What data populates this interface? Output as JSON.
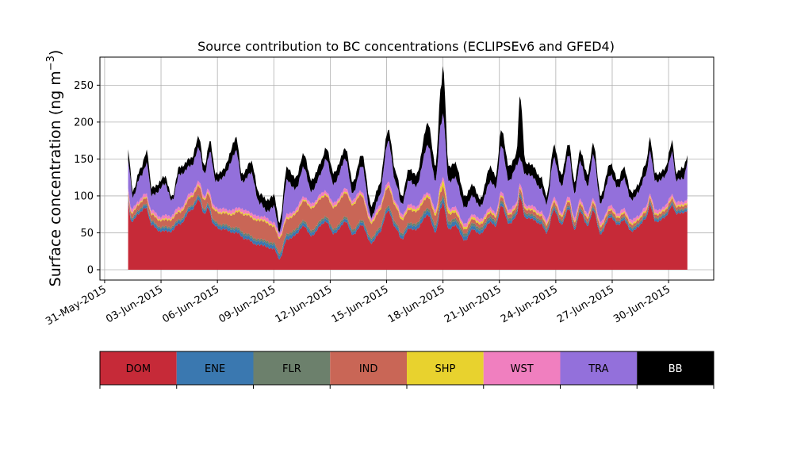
{
  "chart_data": {
    "type": "area",
    "stacked": true,
    "title": "Source contribution to BC concentrations (ECLIPSEv6 and GFED4)",
    "ylabel": "Surface concentration (ng m",
    "ylabel_superscript": "−3",
    "ylabel_close": ")",
    "ylim": [
      -14,
      288
    ],
    "yticks": [
      0,
      50,
      100,
      150,
      200,
      250
    ],
    "xlim": [
      -0.25,
      32.4
    ],
    "x_start_date": "2015-06-01",
    "x_end_date": "2015-07-01T18:00",
    "xticks": [
      {
        "pos": 0,
        "label": "31-May-2015"
      },
      {
        "pos": 3,
        "label": "03-Jun-2015"
      },
      {
        "pos": 6,
        "label": "06-Jun-2015"
      },
      {
        "pos": 9,
        "label": "09-Jun-2015"
      },
      {
        "pos": 12,
        "label": "12-Jun-2015"
      },
      {
        "pos": 15,
        "label": "15-Jun-2015"
      },
      {
        "pos": 18,
        "label": "18-Jun-2015"
      },
      {
        "pos": 21,
        "label": "21-Jun-2015"
      },
      {
        "pos": 24,
        "label": "24-Jun-2015"
      },
      {
        "pos": 27,
        "label": "27-Jun-2015"
      },
      {
        "pos": 30,
        "label": "30-Jun-2015"
      }
    ],
    "grid": true,
    "total_anchors": [
      [
        1.25,
        160
      ],
      [
        1.5,
        108
      ],
      [
        1.9,
        135
      ],
      [
        2.25,
        162
      ],
      [
        2.5,
        110
      ],
      [
        3.2,
        125
      ],
      [
        3.6,
        100
      ],
      [
        4.0,
        140
      ],
      [
        4.6,
        150
      ],
      [
        5.0,
        180
      ],
      [
        5.3,
        140
      ],
      [
        5.6,
        175
      ],
      [
        5.9,
        130
      ],
      [
        6.3,
        135
      ],
      [
        7.0,
        178
      ],
      [
        7.3,
        130
      ],
      [
        7.8,
        145
      ],
      [
        8.25,
        102
      ],
      [
        8.6,
        95
      ],
      [
        9.0,
        100
      ],
      [
        9.3,
        65
      ],
      [
        9.7,
        137
      ],
      [
        10.2,
        125
      ],
      [
        10.6,
        158
      ],
      [
        11.0,
        120
      ],
      [
        11.5,
        145
      ],
      [
        11.8,
        165
      ],
      [
        12.2,
        130
      ],
      [
        12.8,
        164
      ],
      [
        13.2,
        120
      ],
      [
        13.7,
        155
      ],
      [
        14.2,
        85
      ],
      [
        14.6,
        115
      ],
      [
        15.1,
        190
      ],
      [
        15.5,
        130
      ],
      [
        15.8,
        100
      ],
      [
        16.2,
        135
      ],
      [
        16.6,
        130
      ],
      [
        17.2,
        200
      ],
      [
        17.6,
        140
      ],
      [
        17.9,
        250
      ],
      [
        18.0,
        275
      ],
      [
        18.3,
        140
      ],
      [
        18.6,
        145
      ],
      [
        19.2,
        100
      ],
      [
        19.6,
        115
      ],
      [
        20.0,
        95
      ],
      [
        20.5,
        140
      ],
      [
        20.8,
        125
      ],
      [
        21.1,
        191
      ],
      [
        21.5,
        140
      ],
      [
        21.9,
        155
      ],
      [
        22.1,
        235
      ],
      [
        22.4,
        145
      ],
      [
        22.8,
        140
      ],
      [
        23.2,
        125
      ],
      [
        23.5,
        100
      ],
      [
        23.9,
        167
      ],
      [
        24.3,
        130
      ],
      [
        24.7,
        170
      ],
      [
        25.0,
        120
      ],
      [
        25.3,
        160
      ],
      [
        25.7,
        130
      ],
      [
        26.0,
        170
      ],
      [
        26.4,
        100
      ],
      [
        26.9,
        145
      ],
      [
        27.3,
        120
      ],
      [
        27.6,
        140
      ],
      [
        28.0,
        105
      ],
      [
        28.4,
        115
      ],
      [
        28.8,
        145
      ],
      [
        29.0,
        178
      ],
      [
        29.3,
        130
      ],
      [
        29.8,
        135
      ],
      [
        30.2,
        175
      ],
      [
        30.4,
        130
      ],
      [
        30.8,
        140
      ],
      [
        31.0,
        154
      ]
    ],
    "tra_top_anchors": [
      [
        1.25,
        145
      ],
      [
        1.5,
        100
      ],
      [
        1.9,
        125
      ],
      [
        2.25,
        145
      ],
      [
        2.5,
        100
      ],
      [
        3.2,
        115
      ],
      [
        3.6,
        95
      ],
      [
        4.0,
        130
      ],
      [
        4.6,
        140
      ],
      [
        5.0,
        165
      ],
      [
        5.3,
        130
      ],
      [
        5.6,
        160
      ],
      [
        5.9,
        120
      ],
      [
        6.3,
        125
      ],
      [
        7.0,
        160
      ],
      [
        7.3,
        120
      ],
      [
        7.8,
        130
      ],
      [
        8.25,
        90
      ],
      [
        8.6,
        80
      ],
      [
        9.0,
        85
      ],
      [
        9.3,
        52
      ],
      [
        9.7,
        120
      ],
      [
        10.2,
        110
      ],
      [
        10.6,
        140
      ],
      [
        11.0,
        105
      ],
      [
        11.5,
        130
      ],
      [
        11.8,
        150
      ],
      [
        12.2,
        115
      ],
      [
        12.8,
        150
      ],
      [
        13.2,
        105
      ],
      [
        13.7,
        140
      ],
      [
        14.2,
        70
      ],
      [
        14.6,
        100
      ],
      [
        15.1,
        175
      ],
      [
        15.5,
        115
      ],
      [
        15.8,
        90
      ],
      [
        16.2,
        120
      ],
      [
        16.6,
        115
      ],
      [
        17.2,
        170
      ],
      [
        17.6,
        120
      ],
      [
        17.9,
        200
      ],
      [
        18.0,
        210
      ],
      [
        18.3,
        120
      ],
      [
        18.6,
        125
      ],
      [
        19.2,
        85
      ],
      [
        19.6,
        100
      ],
      [
        20.0,
        85
      ],
      [
        20.5,
        120
      ],
      [
        20.8,
        110
      ],
      [
        21.1,
        170
      ],
      [
        21.5,
        120
      ],
      [
        21.9,
        140
      ],
      [
        22.1,
        150
      ],
      [
        22.4,
        130
      ],
      [
        22.8,
        125
      ],
      [
        23.2,
        110
      ],
      [
        23.5,
        90
      ],
      [
        23.9,
        150
      ],
      [
        24.3,
        115
      ],
      [
        24.7,
        155
      ],
      [
        25.0,
        105
      ],
      [
        25.3,
        145
      ],
      [
        25.7,
        115
      ],
      [
        26.0,
        155
      ],
      [
        26.4,
        90
      ],
      [
        26.9,
        130
      ],
      [
        27.3,
        110
      ],
      [
        27.6,
        125
      ],
      [
        28.0,
        95
      ],
      [
        28.4,
        105
      ],
      [
        28.8,
        130
      ],
      [
        29.0,
        160
      ],
      [
        29.3,
        120
      ],
      [
        29.8,
        125
      ],
      [
        30.2,
        160
      ],
      [
        30.4,
        120
      ],
      [
        30.8,
        125
      ],
      [
        31.0,
        145
      ]
    ],
    "dom_anchors": [
      [
        1.25,
        92
      ],
      [
        1.4,
        65
      ],
      [
        1.8,
        75
      ],
      [
        2.2,
        85
      ],
      [
        2.5,
        60
      ],
      [
        3.0,
        52
      ],
      [
        3.5,
        52
      ],
      [
        4.0,
        62
      ],
      [
        4.6,
        80
      ],
      [
        5.0,
        95
      ],
      [
        5.3,
        75
      ],
      [
        5.5,
        85
      ],
      [
        5.8,
        60
      ],
      [
        6.2,
        55
      ],
      [
        7.0,
        50
      ],
      [
        7.5,
        42
      ],
      [
        8.0,
        35
      ],
      [
        8.5,
        32
      ],
      [
        9.0,
        28
      ],
      [
        9.3,
        15
      ],
      [
        9.7,
        40
      ],
      [
        10.2,
        48
      ],
      [
        10.6,
        60
      ],
      [
        11.0,
        45
      ],
      [
        11.5,
        60
      ],
      [
        11.8,
        65
      ],
      [
        12.2,
        48
      ],
      [
        12.8,
        65
      ],
      [
        13.2,
        48
      ],
      [
        13.7,
        60
      ],
      [
        14.2,
        35
      ],
      [
        14.6,
        50
      ],
      [
        15.1,
        80
      ],
      [
        15.5,
        55
      ],
      [
        15.8,
        42
      ],
      [
        16.2,
        55
      ],
      [
        16.6,
        55
      ],
      [
        17.2,
        75
      ],
      [
        17.6,
        50
      ],
      [
        17.9,
        85
      ],
      [
        18.0,
        90
      ],
      [
        18.3,
        55
      ],
      [
        18.6,
        60
      ],
      [
        19.2,
        40
      ],
      [
        19.6,
        55
      ],
      [
        20.0,
        48
      ],
      [
        20.5,
        65
      ],
      [
        20.8,
        58
      ],
      [
        21.1,
        88
      ],
      [
        21.5,
        62
      ],
      [
        21.9,
        72
      ],
      [
        22.1,
        98
      ],
      [
        22.4,
        70
      ],
      [
        22.8,
        68
      ],
      [
        23.2,
        62
      ],
      [
        23.5,
        50
      ],
      [
        23.9,
        80
      ],
      [
        24.3,
        62
      ],
      [
        24.7,
        82
      ],
      [
        25.0,
        55
      ],
      [
        25.3,
        78
      ],
      [
        25.7,
        60
      ],
      [
        26.0,
        80
      ],
      [
        26.4,
        48
      ],
      [
        26.9,
        72
      ],
      [
        27.3,
        60
      ],
      [
        27.6,
        68
      ],
      [
        28.0,
        52
      ],
      [
        28.4,
        58
      ],
      [
        28.8,
        70
      ],
      [
        29.0,
        88
      ],
      [
        29.3,
        65
      ],
      [
        29.8,
        70
      ],
      [
        30.2,
        88
      ],
      [
        30.4,
        75
      ],
      [
        30.8,
        78
      ],
      [
        31.0,
        80
      ]
    ],
    "ene_anchors": [
      [
        1.25,
        3
      ],
      [
        3.0,
        4
      ],
      [
        6.0,
        4
      ],
      [
        9.0,
        5
      ],
      [
        12.0,
        4
      ],
      [
        15.0,
        4
      ],
      [
        18.0,
        6
      ],
      [
        21.0,
        4
      ],
      [
        24.0,
        3
      ],
      [
        27.0,
        3
      ],
      [
        31.0,
        3
      ]
    ],
    "flr_anchors": [
      [
        1.25,
        2
      ],
      [
        4.0,
        2
      ],
      [
        8.0,
        3
      ],
      [
        12.0,
        3
      ],
      [
        16.0,
        3
      ],
      [
        18.0,
        4
      ],
      [
        22.0,
        3
      ],
      [
        26.0,
        2
      ],
      [
        31.0,
        2
      ]
    ],
    "ind_anchors": [
      [
        1.25,
        6
      ],
      [
        2.5,
        8
      ],
      [
        4.0,
        10
      ],
      [
        5.0,
        12
      ],
      [
        6.5,
        15
      ],
      [
        7.5,
        25
      ],
      [
        8.5,
        25
      ],
      [
        9.3,
        20
      ],
      [
        10.0,
        20
      ],
      [
        11.0,
        30
      ],
      [
        12.0,
        28
      ],
      [
        13.0,
        32
      ],
      [
        13.5,
        35
      ],
      [
        14.2,
        20
      ],
      [
        15.0,
        25
      ],
      [
        16.0,
        18
      ],
      [
        17.0,
        15
      ],
      [
        18.0,
        12
      ],
      [
        19.0,
        6
      ],
      [
        20.0,
        5
      ],
      [
        22.0,
        5
      ],
      [
        24.0,
        5
      ],
      [
        26.0,
        5
      ],
      [
        28.0,
        4
      ],
      [
        31.0,
        4
      ]
    ],
    "shp_anchors": [
      [
        1.25,
        1.5
      ],
      [
        6.0,
        2
      ],
      [
        12.0,
        2
      ],
      [
        17.5,
        3
      ],
      [
        18.0,
        8
      ],
      [
        18.5,
        3
      ],
      [
        22.0,
        2
      ],
      [
        31.0,
        2
      ]
    ],
    "series": [
      {
        "name": "DOM",
        "color": "#c62a38"
      },
      {
        "name": "ENE",
        "color": "#3a78b0"
      },
      {
        "name": "FLR",
        "color": "#6c806c"
      },
      {
        "name": "IND",
        "color": "#c96656"
      },
      {
        "name": "SHP",
        "color": "#e8d22e"
      },
      {
        "name": "WST",
        "color": "#f07fbf"
      },
      {
        "name": "TRA",
        "color": "#9370db"
      },
      {
        "name": "BB",
        "color": "#000000"
      }
    ]
  },
  "legend": {
    "items": [
      {
        "label": "DOM",
        "color": "#c62a38",
        "text_color": "#000000"
      },
      {
        "label": "ENE",
        "color": "#3a78b0",
        "text_color": "#000000"
      },
      {
        "label": "FLR",
        "color": "#6c806c",
        "text_color": "#000000"
      },
      {
        "label": "IND",
        "color": "#c96656",
        "text_color": "#000000"
      },
      {
        "label": "SHP",
        "color": "#e8d22e",
        "text_color": "#000000"
      },
      {
        "label": "WST",
        "color": "#f07fbf",
        "text_color": "#000000"
      },
      {
        "label": "TRA",
        "color": "#9370db",
        "text_color": "#000000"
      },
      {
        "label": "BB",
        "color": "#000000",
        "text_color": "#ffffff"
      }
    ]
  }
}
